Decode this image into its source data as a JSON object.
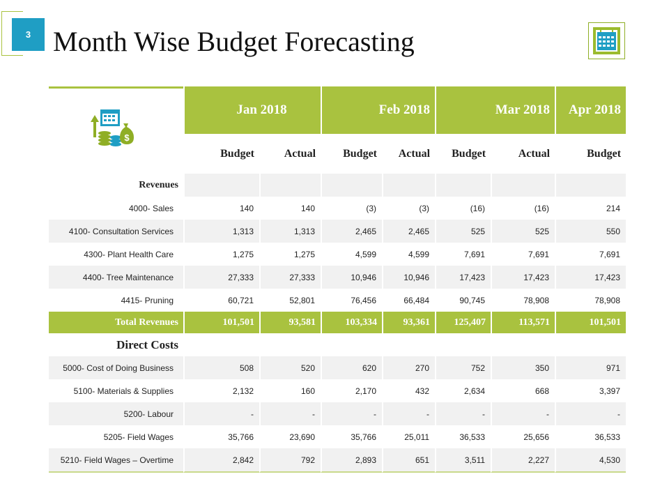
{
  "slide_number": "3",
  "title": "Month Wise Budget Forecasting",
  "colors": {
    "accent": "#a9c23f",
    "badge": "#1f9ec4",
    "icon_blue": "#1f9ec4",
    "shade": "#f1f1f1"
  },
  "icons": {
    "calendar": "calendar-icon",
    "finance": "finance-icon"
  },
  "months": [
    "Jan 2018",
    "Feb 2018",
    "Mar 2018",
    "Apr 2018"
  ],
  "subheaders": [
    "Budget",
    "Actual",
    "Budget",
    "Actual",
    "Budget",
    "Actual",
    "Budget"
  ],
  "revenues_label": "Revenues",
  "revenue_rows": [
    {
      "label": "4000- Sales",
      "values": [
        "140",
        "140",
        "(3)",
        "(3)",
        "(16)",
        "(16)",
        "214"
      ]
    },
    {
      "label": "4100- Consultation Services",
      "values": [
        "1,313",
        "1,313",
        "2,465",
        "2,465",
        "525",
        "525",
        "550"
      ]
    },
    {
      "label": "4300- Plant Health Care",
      "values": [
        "1,275",
        "1,275",
        "4,599",
        "4,599",
        "7,691",
        "7,691",
        "7,691"
      ]
    },
    {
      "label": "4400- Tree Maintenance",
      "values": [
        "27,333",
        "27,333",
        "10,946",
        "10,946",
        "17,423",
        "17,423",
        "17,423"
      ]
    },
    {
      "label": "4415- Pruning",
      "values": [
        "60,721",
        "52,801",
        "76,456",
        "66,484",
        "90,745",
        "78,908",
        "78,908"
      ]
    }
  ],
  "total_revenues": {
    "label": "Total Revenues",
    "values": [
      "101,501",
      "93,581",
      "103,334",
      "93,361",
      "125,407",
      "113,571",
      "101,501"
    ]
  },
  "direct_costs_label": "Direct Costs",
  "cost_rows": [
    {
      "label": "5000- Cost of Doing Business",
      "values": [
        "508",
        "520",
        "620",
        "270",
        "752",
        "350",
        "971"
      ]
    },
    {
      "label": "5100- Materials & Supplies",
      "values": [
        "2,132",
        "160",
        "2,170",
        "432",
        "2,634",
        "668",
        "3,397"
      ]
    },
    {
      "label": "5200- Labour",
      "values": [
        "-",
        "-",
        "-",
        "-",
        "-",
        "-",
        "-"
      ]
    },
    {
      "label": "5205- Field Wages",
      "values": [
        "35,766",
        "23,690",
        "35,766",
        "25,011",
        "36,533",
        "25,656",
        "36,533"
      ]
    },
    {
      "label": "5210- Field Wages – Overtime",
      "values": [
        "2,842",
        "792",
        "2,893",
        "651",
        "3,511",
        "2,227",
        "4,530"
      ]
    }
  ]
}
